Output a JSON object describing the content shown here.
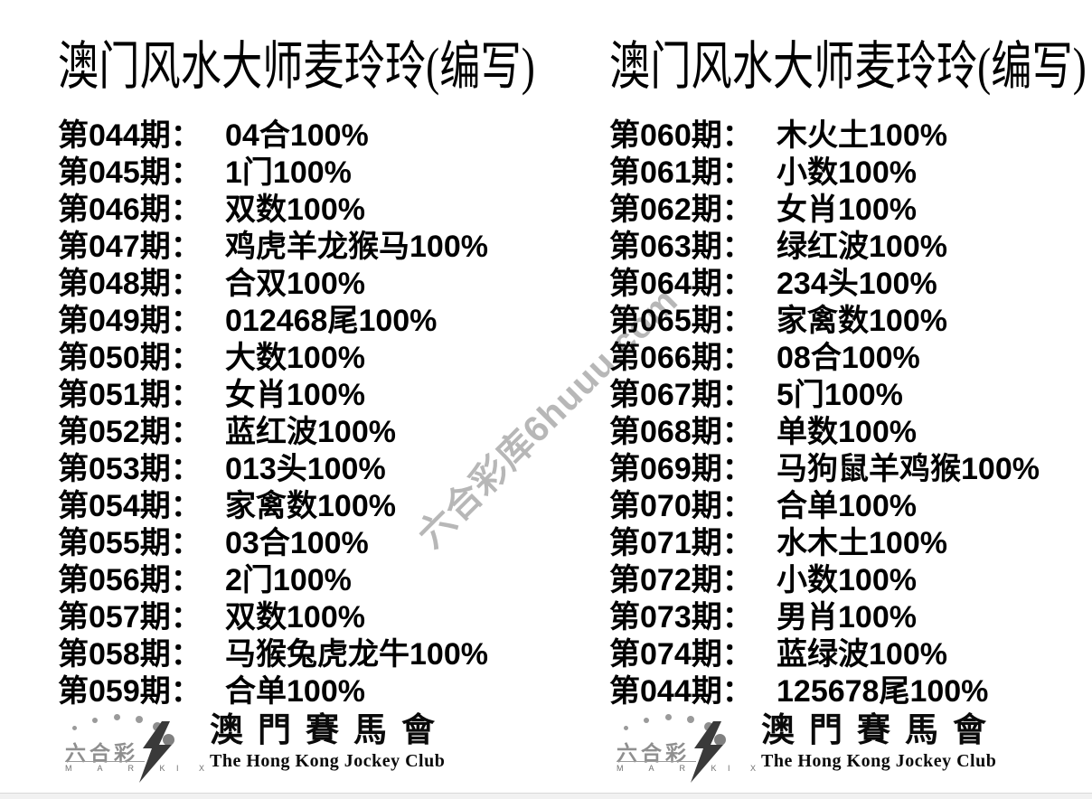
{
  "watermark": {
    "text": "六合彩库6huuu.com",
    "color": "#a6a6a6"
  },
  "columns": [
    {
      "header": "澳门风水大师麦玲玲(编写)",
      "rows": [
        {
          "label": "第044期：",
          "value": "04合100%"
        },
        {
          "label": "第045期：",
          "value": "1门100%"
        },
        {
          "label": "第046期：",
          "value": "双数100%"
        },
        {
          "label": "第047期：",
          "value": "鸡虎羊龙猴马100%"
        },
        {
          "label": "第048期：",
          "value": "合双100%"
        },
        {
          "label": "第049期：",
          "value": "012468尾100%"
        },
        {
          "label": "第050期：",
          "value": "大数100%"
        },
        {
          "label": "第051期：",
          "value": "女肖100%"
        },
        {
          "label": "第052期：",
          "value": "蓝红波100%"
        },
        {
          "label": "第053期：",
          "value": "013头100%"
        },
        {
          "label": "第054期：",
          "value": "家禽数100%"
        },
        {
          "label": "第055期：",
          "value": "03合100%"
        },
        {
          "label": "第056期：",
          "value": "2门100%"
        },
        {
          "label": "第057期：",
          "value": "双数100%"
        },
        {
          "label": "第058期：",
          "value": "马猴兔虎龙牛100%"
        },
        {
          "label": "第059期：",
          "value": "合单100%"
        }
      ]
    },
    {
      "header": "澳门风水大师麦玲玲(编写)",
      "rows": [
        {
          "label": "第060期：",
          "value": "木火土100%"
        },
        {
          "label": "第061期：",
          "value": "小数100%"
        },
        {
          "label": "第062期：",
          "value": "女肖100%"
        },
        {
          "label": "第063期：",
          "value": "绿红波100%"
        },
        {
          "label": "第064期：",
          "value": "234头100%"
        },
        {
          "label": "第065期：",
          "value": "家禽数100%"
        },
        {
          "label": "第066期：",
          "value": "08合100%"
        },
        {
          "label": "第067期：",
          "value": "5门100%"
        },
        {
          "label": "第068期：",
          "value": "单数100%"
        },
        {
          "label": "第069期：",
          "value": "马狗鼠羊鸡猴100%"
        },
        {
          "label": "第070期：",
          "value": "合单100%"
        },
        {
          "label": "第071期：",
          "value": "水木土100%"
        },
        {
          "label": "第072期：",
          "value": "小数100%"
        },
        {
          "label": "第073期：",
          "value": "男肖100%"
        },
        {
          "label": "第074期：",
          "value": "蓝绿波100%"
        },
        {
          "label": "第044期：",
          "value": "125678尾100%"
        }
      ]
    }
  ],
  "footer": {
    "brand_cn": "六合彩",
    "brand_left": "M A R K",
    "brand_right": "I X",
    "club_cn": "澳門賽馬會",
    "club_en": "The Hong Kong Jockey Club"
  },
  "colors": {
    "text": "#000000",
    "watermark": "#a6a6a6",
    "logo_gray": "#8f8f8f",
    "bolt": "#3a3a3a",
    "strip_bg": "#f1f1f1",
    "strip_border": "#d9d9d9"
  }
}
